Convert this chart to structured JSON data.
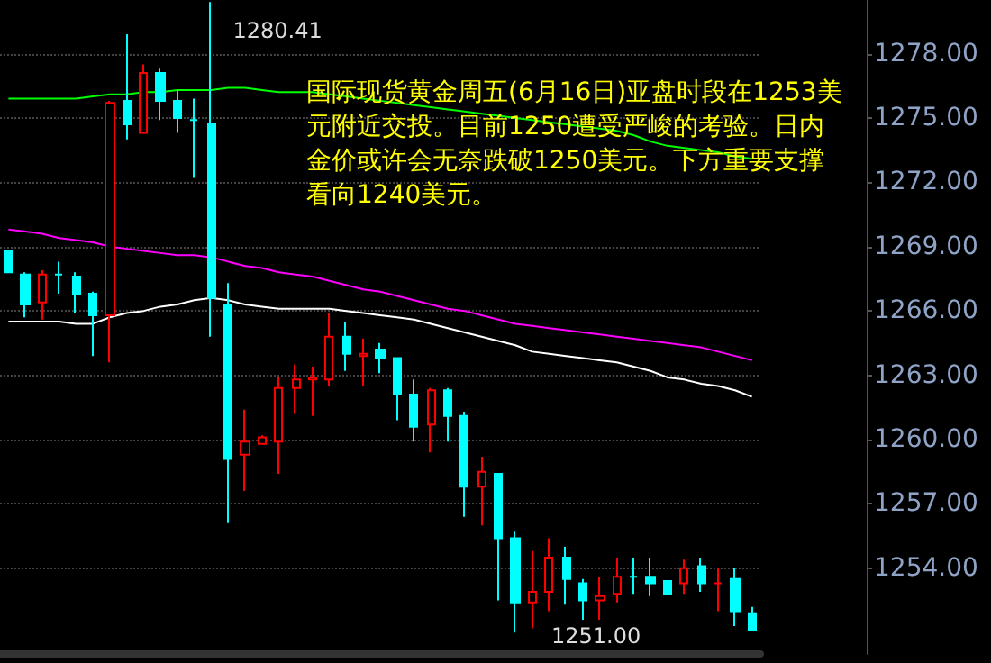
{
  "chart_data": {
    "type": "candlestick",
    "categories": [
      null,
      null,
      null,
      null,
      null,
      null,
      null,
      null,
      null,
      null,
      null,
      null,
      null,
      null,
      null,
      null,
      null,
      null,
      null,
      null,
      null,
      null,
      null,
      null,
      null,
      null,
      null,
      null,
      null,
      null,
      null,
      null,
      null,
      null,
      null,
      null,
      null,
      null,
      null,
      null,
      null,
      null,
      null,
      null,
      null
    ],
    "ohlc": [
      [
        1268.8,
        1268.8,
        1267.8,
        1267.8
      ],
      [
        1267.7,
        1267.8,
        1265.7,
        1266.3
      ],
      [
        1266.4,
        1267.9,
        1265.6,
        1267.7
      ],
      [
        1267.7,
        1268.3,
        1266.8,
        1267.7
      ],
      [
        1267.6,
        1267.8,
        1265.9,
        1266.8
      ],
      [
        1266.8,
        1266.9,
        1263.9,
        1265.8
      ],
      [
        1265.8,
        1275.8,
        1263.6,
        1275.7
      ],
      [
        1275.8,
        1278.9,
        1274.0,
        1274.7
      ],
      [
        1274.3,
        1277.5,
        1274.3,
        1277.1
      ],
      [
        1277.1,
        1277.3,
        1274.9,
        1275.8
      ],
      [
        1275.8,
        1276.3,
        1274.3,
        1275.0
      ],
      [
        1274.9,
        1275.9,
        1272.2,
        1274.9
      ],
      [
        1274.7,
        1280.41,
        1264.8,
        1266.6
      ],
      [
        1266.3,
        1267.3,
        1256.1,
        1259.1
      ],
      [
        1259.3,
        1261.4,
        1257.6,
        1259.9
      ],
      [
        1259.8,
        1260.2,
        1259.8,
        1260.1
      ],
      [
        1259.9,
        1262.9,
        1258.4,
        1262.4
      ],
      [
        1262.4,
        1263.5,
        1261.2,
        1262.8
      ],
      [
        1262.8,
        1263.4,
        1261.1,
        1262.9
      ],
      [
        1262.8,
        1265.9,
        1262.5,
        1264.8
      ],
      [
        1264.8,
        1265.5,
        1263.2,
        1264.0
      ],
      [
        1263.9,
        1264.7,
        1262.5,
        1264.0
      ],
      [
        1264.2,
        1264.5,
        1263.1,
        1263.8
      ],
      [
        1263.8,
        1263.8,
        1260.9,
        1262.1
      ],
      [
        1262.1,
        1262.8,
        1259.9,
        1260.6
      ],
      [
        1260.7,
        1262.4,
        1259.4,
        1262.3
      ],
      [
        1262.3,
        1262.4,
        1259.9,
        1261.1
      ],
      [
        1261.1,
        1261.3,
        1256.4,
        1257.8
      ],
      [
        1257.8,
        1259.2,
        1256.0,
        1258.5
      ],
      [
        1258.4,
        1258.4,
        1252.5,
        1255.4
      ],
      [
        1255.4,
        1255.7,
        1251.0,
        1252.4
      ],
      [
        1252.4,
        1254.8,
        1251.2,
        1252.9
      ],
      [
        1252.9,
        1255.4,
        1252.0,
        1254.5
      ],
      [
        1254.5,
        1255.0,
        1252.3,
        1253.5
      ],
      [
        1253.3,
        1253.5,
        1251.6,
        1252.5
      ],
      [
        1252.5,
        1253.6,
        1251.6,
        1252.7
      ],
      [
        1252.8,
        1254.5,
        1252.4,
        1253.6
      ],
      [
        1253.6,
        1254.5,
        1252.8,
        1253.6
      ],
      [
        1253.6,
        1254.5,
        1252.7,
        1253.3
      ],
      [
        1253.4,
        1253.4,
        1252.8,
        1252.8
      ],
      [
        1253.3,
        1254.4,
        1252.8,
        1254.0
      ],
      [
        1254.1,
        1254.5,
        1252.9,
        1253.3
      ],
      [
        1253.3,
        1254.0,
        1252.0,
        1253.3
      ],
      [
        1253.5,
        1254.0,
        1251.3,
        1252.0
      ],
      [
        1251.9,
        1252.2,
        1251.1,
        1251.1
      ]
    ],
    "colors": [
      "#00ffff",
      "#00ffff",
      "#ff0000",
      "#00ffff",
      "#00ffff",
      "#00ffff",
      "#ff0000",
      "#00ffff",
      "#ff0000",
      "#00ffff",
      "#00ffff",
      "#00ffff",
      "#00ffff",
      "#00ffff",
      "#ff0000",
      "#ff0000",
      "#ff0000",
      "#ff0000",
      "#ff0000",
      "#ff0000",
      "#00ffff",
      "#ff0000",
      "#00ffff",
      "#00ffff",
      "#00ffff",
      "#ff0000",
      "#00ffff",
      "#00ffff",
      "#ff0000",
      "#00ffff",
      "#00ffff",
      "#ff0000",
      "#ff0000",
      "#00ffff",
      "#00ffff",
      "#ff0000",
      "#ff0000",
      "#00ffff",
      "#00ffff",
      "#00ffff",
      "#ff0000",
      "#00ffff",
      "#ff0000",
      "#00ffff",
      "#00ffff"
    ],
    "series": [
      {
        "type": "line",
        "color": "#00ff00",
        "values": [
          1275.9,
          1275.9,
          1275.9,
          1275.9,
          1275.9,
          1276.0,
          1276.1,
          1276.1,
          1276.2,
          1276.2,
          1276.3,
          1276.3,
          1276.3,
          1276.4,
          1276.4,
          1276.3,
          1276.2,
          1276.2,
          1276.2,
          1276.1,
          1276.0,
          1275.9,
          1275.8,
          1275.7,
          1275.6,
          1275.5,
          1275.4,
          1275.3,
          1275.2,
          1275.1,
          1275.0,
          1274.9,
          1274.8,
          1274.7,
          1274.6,
          1274.5,
          1274.4,
          1274.2,
          1273.9,
          1273.7,
          1273.6,
          1273.5,
          1273.4,
          1273.2,
          1273.1
        ]
      },
      {
        "type": "line",
        "color": "#ff00ff",
        "values": [
          1269.8,
          1269.7,
          1269.6,
          1269.4,
          1269.3,
          1269.2,
          1269.0,
          1268.9,
          1268.8,
          1268.7,
          1268.6,
          1268.6,
          1268.5,
          1268.3,
          1268.1,
          1268.0,
          1267.8,
          1267.7,
          1267.6,
          1267.4,
          1267.2,
          1267.0,
          1266.9,
          1266.7,
          1266.5,
          1266.3,
          1266.1,
          1266.0,
          1265.8,
          1265.6,
          1265.4,
          1265.3,
          1265.2,
          1265.1,
          1265.0,
          1264.9,
          1264.8,
          1264.7,
          1264.6,
          1264.5,
          1264.4,
          1264.3,
          1264.1,
          1263.9,
          1263.7
        ]
      },
      {
        "type": "line",
        "color": "#ffffff",
        "values": [
          1265.5,
          1265.5,
          1265.5,
          1265.5,
          1265.4,
          1265.4,
          1265.7,
          1265.9,
          1266.0,
          1266.2,
          1266.3,
          1266.5,
          1266.6,
          1266.5,
          1266.3,
          1266.2,
          1266.1,
          1266.1,
          1266.1,
          1266.1,
          1266.0,
          1265.9,
          1265.8,
          1265.7,
          1265.6,
          1265.4,
          1265.2,
          1265.0,
          1264.8,
          1264.6,
          1264.4,
          1264.1,
          1264.0,
          1263.9,
          1263.8,
          1263.7,
          1263.6,
          1263.4,
          1263.2,
          1262.9,
          1262.8,
          1262.6,
          1262.5,
          1262.3,
          1262.0
        ]
      }
    ],
    "ylim": [
      1250,
      1280.5
    ],
    "yticks": [
      {
        "value": 1254,
        "label": "1254.00"
      },
      {
        "value": 1257,
        "label": "1257.00"
      },
      {
        "value": 1260,
        "label": "1260.00"
      },
      {
        "value": 1263,
        "label": "1263.00"
      },
      {
        "value": 1266,
        "label": "1266.00"
      },
      {
        "value": 1269,
        "label": "1269.00"
      },
      {
        "value": 1272,
        "label": "1272.00"
      },
      {
        "value": 1275,
        "label": "1275.00"
      },
      {
        "value": 1278,
        "label": "1278.00"
      }
    ],
    "grid": "y",
    "tick_labels": "y",
    "marker": "none",
    "line_style": "solid",
    "annotations": [
      "国际现货黄金周五(6月16日)亚盘时段在1253美元附近交投。目前1250遭受严峻的考验。日内金价或许会无奈跌破1250美元。下方重要支撑看向1240美元。",
      "1280.41",
      "1251.00"
    ]
  }
}
